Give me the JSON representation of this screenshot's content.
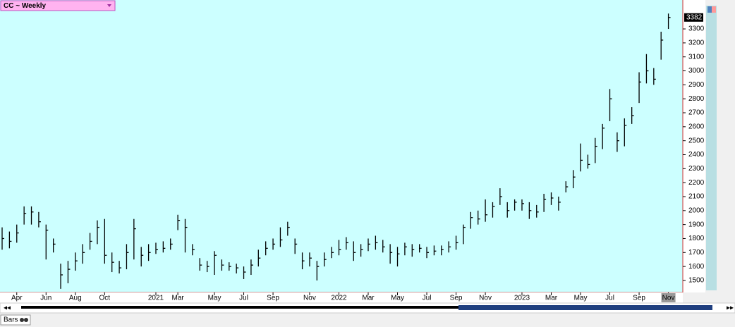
{
  "chart_data": {
    "type": "ohlc",
    "title": "CC ~ Weekly",
    "categories": [
      null,
      null,
      "Apr",
      null,
      null,
      null,
      "Jun",
      null,
      null,
      null,
      "Aug",
      null,
      null,
      null,
      "Oct",
      null,
      null,
      null,
      null,
      null,
      null,
      "2021",
      null,
      null,
      "Mar",
      null,
      null,
      null,
      null,
      "May",
      null,
      null,
      null,
      "Jul",
      null,
      null,
      null,
      "Sep",
      null,
      null,
      null,
      null,
      "Nov",
      null,
      null,
      null,
      "2022",
      null,
      null,
      null,
      "Mar",
      null,
      null,
      null,
      "May",
      null,
      null,
      null,
      "Jul",
      null,
      null,
      null,
      "Sep",
      null,
      null,
      null,
      "Nov",
      null,
      null,
      null,
      null,
      "2023",
      null,
      null,
      null,
      "Mar",
      null,
      null,
      null,
      "May",
      null,
      null,
      null,
      "Jul",
      null,
      null,
      null,
      "Sep",
      null,
      null,
      null,
      "Nov"
    ],
    "high": [
      1880,
      1850,
      1900,
      2030,
      2030,
      1990,
      1900,
      1800,
      1620,
      1640,
      1700,
      1760,
      1840,
      1930,
      1940,
      1700,
      1640,
      1760,
      1940,
      1740,
      1760,
      1770,
      1780,
      1800,
      1970,
      1940,
      1760,
      1660,
      1640,
      1710,
      1650,
      1630,
      1620,
      1600,
      1650,
      1720,
      1780,
      1800,
      1880,
      1920,
      1800,
      1700,
      1700,
      1640,
      1700,
      1740,
      1790,
      1810,
      1780,
      1760,
      1800,
      1820,
      1790,
      1760,
      1740,
      1770,
      1760,
      1760,
      1740,
      1750,
      1750,
      1780,
      1820,
      1900,
      1990,
      2000,
      2080,
      2060,
      2160,
      2060,
      2080,
      2080,
      2060,
      2040,
      2120,
      2130,
      2100,
      2210,
      2290,
      2480,
      2400,
      2520,
      2620,
      2870,
      2560,
      2660,
      2740,
      2990,
      3120,
      3020,
      3280,
      3410
    ],
    "low": [
      1720,
      1730,
      1770,
      1900,
      1900,
      1880,
      1650,
      1700,
      1440,
      1480,
      1570,
      1620,
      1720,
      1760,
      1620,
      1560,
      1550,
      1580,
      1650,
      1600,
      1640,
      1690,
      1700,
      1720,
      1860,
      1700,
      1680,
      1570,
      1560,
      1540,
      1570,
      1570,
      1550,
      1510,
      1540,
      1600,
      1680,
      1720,
      1740,
      1820,
      1690,
      1580,
      1600,
      1500,
      1600,
      1660,
      1680,
      1720,
      1640,
      1670,
      1710,
      1720,
      1700,
      1620,
      1600,
      1680,
      1670,
      1700,
      1660,
      1680,
      1680,
      1700,
      1720,
      1760,
      1870,
      1900,
      1920,
      1950,
      2040,
      1950,
      2000,
      2000,
      1940,
      1950,
      1990,
      2040,
      2000,
      2130,
      2160,
      2280,
      2300,
      2340,
      2440,
      2640,
      2420,
      2460,
      2620,
      2770,
      2910,
      2900,
      3080,
      3300
    ],
    "close": [
      1800,
      1780,
      1840,
      1980,
      1990,
      1920,
      1860,
      1760,
      1540,
      1580,
      1640,
      1700,
      1780,
      1880,
      1680,
      1630,
      1590,
      1700,
      1870,
      1680,
      1700,
      1720,
      1730,
      1760,
      1930,
      1880,
      1720,
      1610,
      1600,
      1680,
      1610,
      1600,
      1590,
      1560,
      1610,
      1660,
      1730,
      1760,
      1790,
      1880,
      1760,
      1640,
      1660,
      1600,
      1650,
      1700,
      1720,
      1770,
      1700,
      1720,
      1760,
      1770,
      1740,
      1700,
      1690,
      1740,
      1720,
      1730,
      1700,
      1710,
      1720,
      1740,
      1770,
      1880,
      1950,
      1940,
      1970,
      2030,
      2100,
      2000,
      2060,
      2050,
      2000,
      1990,
      2080,
      2090,
      2060,
      2170,
      2240,
      2360,
      2330,
      2460,
      2590,
      2800,
      2500,
      2610,
      2680,
      2920,
      3000,
      2940,
      3220,
      3382
    ],
    "color": "#000000",
    "ylim": [
      1414,
      3507
    ],
    "yticks": [
      1500,
      1600,
      1700,
      1800,
      1900,
      2000,
      2100,
      2200,
      2300,
      2400,
      2500,
      2600,
      2700,
      2800,
      2900,
      3000,
      3100,
      3200,
      3300
    ]
  },
  "ui": {
    "tab": "Bars"
  }
}
